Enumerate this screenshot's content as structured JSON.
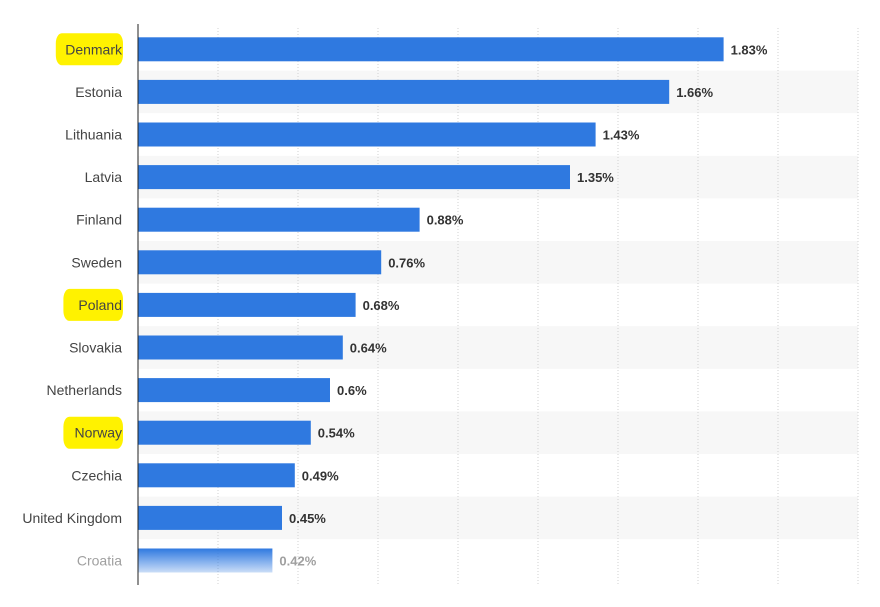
{
  "chart_data": {
    "type": "bar",
    "orientation": "horizontal",
    "categories": [
      "Denmark",
      "Estonia",
      "Lithuania",
      "Latvia",
      "Finland",
      "Sweden",
      "Poland",
      "Slovakia",
      "Netherlands",
      "Norway",
      "Czechia",
      "United Kingdom",
      "Croatia"
    ],
    "values": [
      1.83,
      1.66,
      1.43,
      1.35,
      0.88,
      0.76,
      0.68,
      0.64,
      0.6,
      0.54,
      0.49,
      0.45,
      0.42
    ],
    "value_labels": [
      "1.83%",
      "1.66%",
      "1.43%",
      "1.35%",
      "0.88%",
      "0.76%",
      "0.68%",
      "0.64%",
      "0.6%",
      "0.54%",
      "0.49%",
      "0.45%",
      "0.42%"
    ],
    "highlighted": [
      "Denmark",
      "Poland",
      "Norway"
    ],
    "faded": [
      "Croatia"
    ],
    "xlim": [
      0,
      2.25
    ],
    "grid": true,
    "legend": "none"
  },
  "colors": {
    "bar": "#2f79e0",
    "highlight": "#fff200",
    "label_text": "#444444",
    "value_text": "#333333",
    "faded_text": "#a0a0a0",
    "grid": "#d0d0d0",
    "band": "#f7f7f7",
    "axis": "#222222"
  }
}
